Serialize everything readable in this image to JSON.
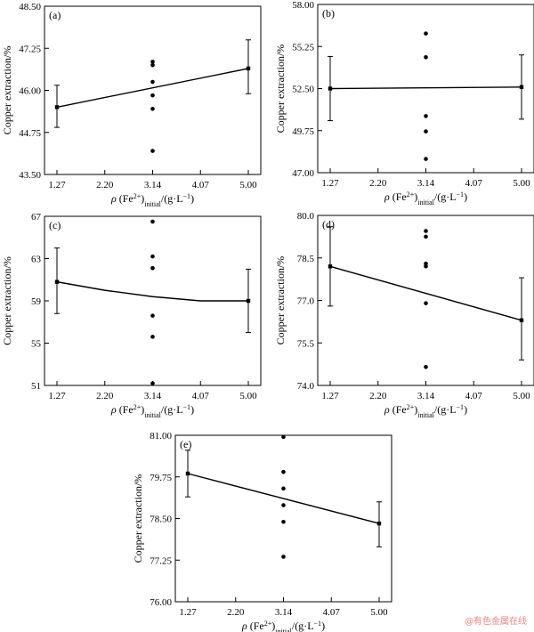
{
  "chart_data": [
    {
      "type": "scatter",
      "panel_label": "(a)",
      "xlabel": "ρ (Fe2+)initial/(g·L−1)",
      "ylabel": "Copper extraction/%",
      "x_ticks": [
        "1.27",
        "2.20",
        "3.14",
        "4.07",
        "5.00"
      ],
      "y_ticks": [
        "43.50",
        "44.75",
        "46.00",
        "47.25",
        "48.50"
      ],
      "xlim": [
        1.27,
        5.0
      ],
      "ylim": [
        43.5,
        48.5
      ],
      "points": [
        {
          "x": 1.27,
          "y": 45.5
        },
        {
          "x": 5.0,
          "y": 46.65
        },
        {
          "x": 3.14,
          "y": 46.85
        },
        {
          "x": 3.14,
          "y": 46.75
        },
        {
          "x": 3.14,
          "y": 46.25
        },
        {
          "x": 3.14,
          "y": 45.85
        },
        {
          "x": 3.14,
          "y": 45.45
        },
        {
          "x": 3.14,
          "y": 44.2
        }
      ],
      "error_bars": [
        {
          "x": 1.27,
          "y": 45.5,
          "low": 44.9,
          "high": 46.15
        },
        {
          "x": 5.0,
          "y": 46.65,
          "low": 45.9,
          "high": 47.5
        }
      ],
      "fit_line": {
        "x": [
          1.27,
          5.0
        ],
        "y": [
          45.5,
          46.65
        ]
      }
    },
    {
      "type": "scatter",
      "panel_label": "(b)",
      "xlabel": "ρ (Fe2+)initial/(g·L−1)",
      "ylabel": "Copper extraction/%",
      "x_ticks": [
        "1.27",
        "2.20",
        "3.14",
        "4.07",
        "5.00"
      ],
      "y_ticks": [
        "47.00",
        "49.75",
        "52.50",
        "55.25",
        "58.00"
      ],
      "xlim": [
        1.27,
        5.0
      ],
      "ylim": [
        47.0,
        58.0
      ],
      "points": [
        {
          "x": 1.27,
          "y": 52.5
        },
        {
          "x": 5.0,
          "y": 52.6
        },
        {
          "x": 3.14,
          "y": 56.1
        },
        {
          "x": 3.14,
          "y": 54.55
        },
        {
          "x": 3.14,
          "y": 50.7
        },
        {
          "x": 3.14,
          "y": 49.7
        },
        {
          "x": 3.14,
          "y": 47.9
        }
      ],
      "error_bars": [
        {
          "x": 1.27,
          "y": 52.5,
          "low": 50.4,
          "high": 54.6
        },
        {
          "x": 5.0,
          "y": 52.6,
          "low": 50.5,
          "high": 54.7
        }
      ],
      "fit_line": {
        "x": [
          1.27,
          5.0
        ],
        "y": [
          52.5,
          52.6
        ]
      }
    },
    {
      "type": "scatter",
      "panel_label": "(c)",
      "xlabel": "ρ (Fe2+)initial/(g·L−1)",
      "ylabel": "Copper extraction/%",
      "x_ticks": [
        "1.27",
        "2.20",
        "3.14",
        "4.07",
        "5.00"
      ],
      "y_ticks": [
        "51",
        "55",
        "59",
        "63",
        "67"
      ],
      "xlim": [
        1.27,
        5.0
      ],
      "ylim": [
        51,
        67
      ],
      "points": [
        {
          "x": 1.27,
          "y": 60.8
        },
        {
          "x": 5.0,
          "y": 59.0
        },
        {
          "x": 3.14,
          "y": 66.5
        },
        {
          "x": 3.14,
          "y": 63.2
        },
        {
          "x": 3.14,
          "y": 62.1
        },
        {
          "x": 3.14,
          "y": 57.6
        },
        {
          "x": 3.14,
          "y": 55.6
        },
        {
          "x": 3.14,
          "y": 51.2
        }
      ],
      "error_bars": [
        {
          "x": 1.27,
          "y": 60.8,
          "low": 57.8,
          "high": 64.0
        },
        {
          "x": 5.0,
          "y": 59.0,
          "low": 56.0,
          "high": 62.0
        }
      ],
      "fit_line": {
        "x": [
          1.27,
          2.2,
          3.14,
          4.07,
          5.0
        ],
        "y": [
          60.8,
          60.0,
          59.4,
          59.0,
          59.0
        ]
      }
    },
    {
      "type": "scatter",
      "panel_label": "(d)",
      "xlabel": "ρ (Fe2+)initial/(g·L−1)",
      "ylabel": "Copper extraction/%",
      "x_ticks": [
        "1.27",
        "2.20",
        "3.14",
        "4.07",
        "5.00"
      ],
      "y_ticks": [
        "74.0",
        "75.5",
        "77.0",
        "78.5",
        "80.0"
      ],
      "xlim": [
        1.27,
        5.0
      ],
      "ylim": [
        74.0,
        80.0
      ],
      "points": [
        {
          "x": 1.27,
          "y": 78.2
        },
        {
          "x": 5.0,
          "y": 76.3
        },
        {
          "x": 3.14,
          "y": 79.45
        },
        {
          "x": 3.14,
          "y": 79.25
        },
        {
          "x": 3.14,
          "y": 78.3
        },
        {
          "x": 3.14,
          "y": 78.2
        },
        {
          "x": 3.14,
          "y": 76.9
        },
        {
          "x": 3.14,
          "y": 74.65
        }
      ],
      "error_bars": [
        {
          "x": 1.27,
          "y": 78.2,
          "low": 76.8,
          "high": 79.6
        },
        {
          "x": 5.0,
          "y": 76.3,
          "low": 74.9,
          "high": 77.8
        }
      ],
      "fit_line": {
        "x": [
          1.27,
          5.0
        ],
        "y": [
          78.2,
          76.3
        ]
      }
    },
    {
      "type": "scatter",
      "panel_label": "(e)",
      "xlabel": "ρ (Fe2+)initial/(g·L−1)",
      "ylabel": "Copper extraction/%",
      "x_ticks": [
        "1.27",
        "2.20",
        "3.14",
        "4.07",
        "5.00"
      ],
      "y_ticks": [
        "76.00",
        "77.25",
        "78.50",
        "79.75",
        "81.00"
      ],
      "xlim": [
        1.27,
        5.0
      ],
      "ylim": [
        76.0,
        81.0
      ],
      "points": [
        {
          "x": 1.27,
          "y": 79.85
        },
        {
          "x": 5.0,
          "y": 78.35
        },
        {
          "x": 3.14,
          "y": 80.95
        },
        {
          "x": 3.14,
          "y": 79.9
        },
        {
          "x": 3.14,
          "y": 79.4
        },
        {
          "x": 3.14,
          "y": 78.9
        },
        {
          "x": 3.14,
          "y": 78.4
        },
        {
          "x": 3.14,
          "y": 77.35
        }
      ],
      "error_bars": [
        {
          "x": 1.27,
          "y": 79.85,
          "low": 79.15,
          "high": 80.55
        },
        {
          "x": 5.0,
          "y": 78.35,
          "low": 77.65,
          "high": 79.0
        }
      ],
      "fit_line": {
        "x": [
          1.27,
          5.0
        ],
        "y": [
          79.85,
          78.35
        ]
      }
    }
  ],
  "watermark": "@有色金属在线"
}
